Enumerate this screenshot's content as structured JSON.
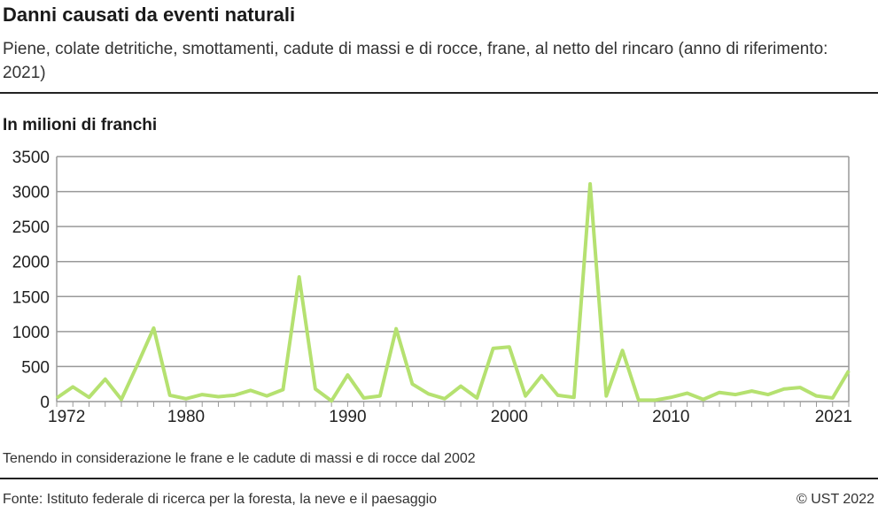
{
  "header": {
    "title": "Danni causati da eventi naturali",
    "subtitle": "Piene, colate detritiche, smottamenti, cadute di massi e di rocce, frane, al netto del rincaro (anno di riferimento: 2021)"
  },
  "chart_data": {
    "type": "line",
    "ylabel": "In milioni di franchi",
    "ylim": [
      0,
      3500
    ],
    "yticks": [
      0,
      500,
      1000,
      1500,
      2000,
      2500,
      3000,
      3500
    ],
    "xlim": [
      1972,
      2021
    ],
    "xticks": [
      1972,
      1980,
      1990,
      2000,
      2010,
      2021
    ],
    "grid": true,
    "color": "#b5e170",
    "x": [
      1972,
      1973,
      1974,
      1975,
      1976,
      1977,
      1978,
      1979,
      1980,
      1981,
      1982,
      1983,
      1984,
      1985,
      1986,
      1987,
      1988,
      1989,
      1990,
      1991,
      1992,
      1993,
      1994,
      1995,
      1996,
      1997,
      1998,
      1999,
      2000,
      2001,
      2002,
      2003,
      2004,
      2005,
      2006,
      2007,
      2008,
      2009,
      2010,
      2011,
      2012,
      2013,
      2014,
      2015,
      2016,
      2017,
      2018,
      2019,
      2020,
      2021
    ],
    "values": [
      50,
      210,
      60,
      320,
      30,
      530,
      1050,
      90,
      40,
      100,
      70,
      90,
      160,
      80,
      170,
      1780,
      180,
      10,
      380,
      50,
      80,
      1040,
      250,
      110,
      40,
      220,
      50,
      760,
      780,
      80,
      370,
      90,
      60,
      3110,
      80,
      730,
      20,
      20,
      60,
      120,
      30,
      130,
      100,
      150,
      100,
      180,
      200,
      80,
      50,
      440
    ]
  },
  "footer": {
    "note": "Tenendo in considerazione le frane e le cadute di massi e di rocce dal 2002",
    "source": "Fonte: Istituto federale di ricerca per la foresta, la neve e il paesaggio",
    "copyright": "© UST 2022"
  }
}
